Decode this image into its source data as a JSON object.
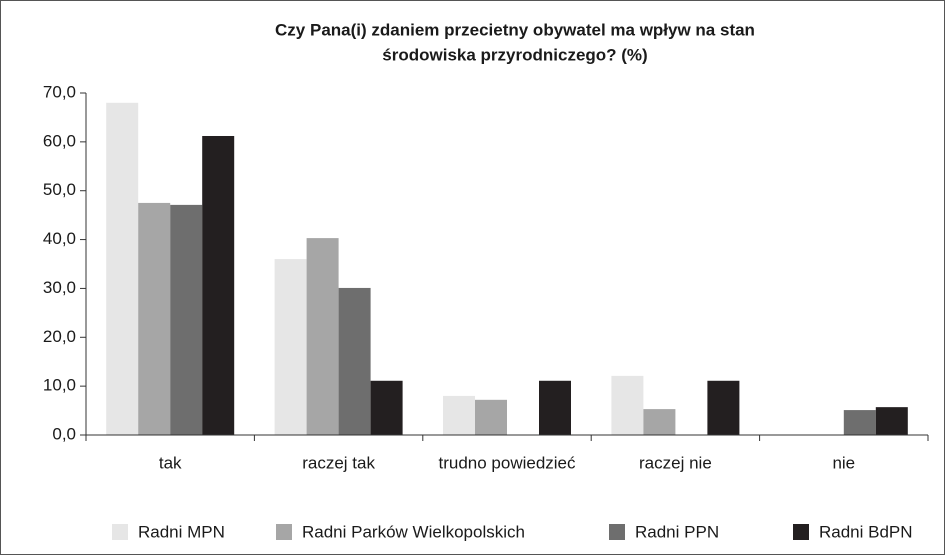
{
  "chart_data": {
    "type": "bar",
    "title": [
      "Czy Pana(i) zdaniem przecietny obywatel ma wpływ na stan",
      "środowiska przyrodniczego? (%)"
    ],
    "categories": [
      "tak",
      "raczej tak",
      "trudno powiedzieć",
      "raczej nie",
      "nie"
    ],
    "series": [
      {
        "name": "Radni MPN",
        "color": "#e6e6e6",
        "values": [
          68.0,
          36.0,
          8.0,
          12.1,
          0
        ]
      },
      {
        "name": "Radni Parków Wielkopolskich",
        "color": "#a6a6a6",
        "values": [
          47.5,
          40.3,
          7.2,
          5.3,
          0
        ]
      },
      {
        "name": "Radni PPN",
        "color": "#6e6e6e",
        "values": [
          47.1,
          30.1,
          0,
          0,
          5.1
        ]
      },
      {
        "name": "Radni BdPN",
        "color": "#231f20",
        "values": [
          61.2,
          11.1,
          11.1,
          11.1,
          5.7
        ]
      }
    ],
    "ylim": [
      0,
      70
    ],
    "yticks": [
      {
        "value": 0,
        "label": "0,0"
      },
      {
        "value": 10,
        "label": "10,0"
      },
      {
        "value": 20,
        "label": "20,0"
      },
      {
        "value": 30,
        "label": "30,0"
      },
      {
        "value": 40,
        "label": "40,0"
      },
      {
        "value": 50,
        "label": "50,0"
      },
      {
        "value": 60,
        "label": "60,0"
      },
      {
        "value": 70,
        "label": "70,0"
      }
    ],
    "legend": "bottom"
  }
}
